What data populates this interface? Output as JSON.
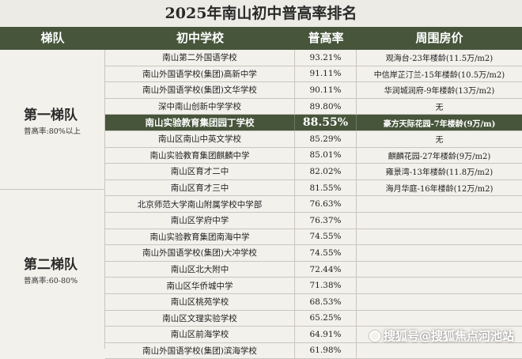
{
  "title": "2025年南山初中普高率排名",
  "header": {
    "tier": "梯队",
    "school": "初中学校",
    "rate": "普高率",
    "housing": "周围房价"
  },
  "tiers": [
    {
      "name": "第一梯队",
      "sub": "普高率:80%以上"
    },
    {
      "name": "第二梯队",
      "sub": "普高率:60-80%"
    }
  ],
  "rows": [
    {
      "school": "南山第二外国语学校",
      "rate": "93.21%",
      "housing": "观海台-23年楼龄(11.5万/m2)",
      "highlight": false
    },
    {
      "school": "南山外国语学校(集团)高新中学",
      "rate": "91.11%",
      "housing": "中信岸芷汀兰-15年楼龄(10.5万/m2)",
      "highlight": false
    },
    {
      "school": "南山外国语学校(集团)文华学校",
      "rate": "90.11%",
      "housing": "华润城润府-9年楼龄(13万/m2)",
      "highlight": false
    },
    {
      "school": "深中南山创新中学学校",
      "rate": "89.80%",
      "housing": "无",
      "highlight": false
    },
    {
      "school": "南山实验教育集团园丁学校",
      "rate": "88.55%",
      "housing": "豪方天际花园-7年楼龄(9万/m)",
      "highlight": true
    },
    {
      "school": "南山区南山中英文学校",
      "rate": "85.29%",
      "housing": "无",
      "highlight": false
    },
    {
      "school": "南山实验教育集团麒麟中学",
      "rate": "85.01%",
      "housing": "麒麟花园-27年楼龄(9万/m2)",
      "highlight": false
    },
    {
      "school": "南山区育才二中",
      "rate": "82.02%",
      "housing": "雍景湾-13年楼龄(11.8万/m2)",
      "highlight": false
    },
    {
      "school": "南山区育才三中",
      "rate": "81.55%",
      "housing": "海月华庭-16年楼龄(12万/m2)",
      "highlight": false
    },
    {
      "school": "北京师范大学南山附属学校中学部",
      "rate": "76.63%",
      "housing": "",
      "highlight": false
    },
    {
      "school": "南山区学府中学",
      "rate": "76.37%",
      "housing": "",
      "highlight": false
    },
    {
      "school": "南山实验教育集团南海中学",
      "rate": "74.55%",
      "housing": "",
      "highlight": false
    },
    {
      "school": "南山外国语学校(集团)大冲学校",
      "rate": "74.55%",
      "housing": "",
      "highlight": false
    },
    {
      "school": "南山区北大附中",
      "rate": "72.44%",
      "housing": "",
      "highlight": false
    },
    {
      "school": "南山区华侨城中学",
      "rate": "71.38%",
      "housing": "",
      "highlight": false
    },
    {
      "school": "南山区桃苑学校",
      "rate": "68.53%",
      "housing": "",
      "highlight": false
    },
    {
      "school": "南山区文理实验学校",
      "rate": "65.25%",
      "housing": "",
      "highlight": false
    },
    {
      "school": "南山区前海学校",
      "rate": "64.91%",
      "housing": "",
      "highlight": false
    },
    {
      "school": "南山外国语学校(集团)滨海学校",
      "rate": "61.98%",
      "housing": "",
      "highlight": false
    }
  ],
  "watermark": "搜狐号@搜狐焦点河池站",
  "colors": {
    "header_bg": "#47553b",
    "page_bg": "#f3f1ec"
  }
}
